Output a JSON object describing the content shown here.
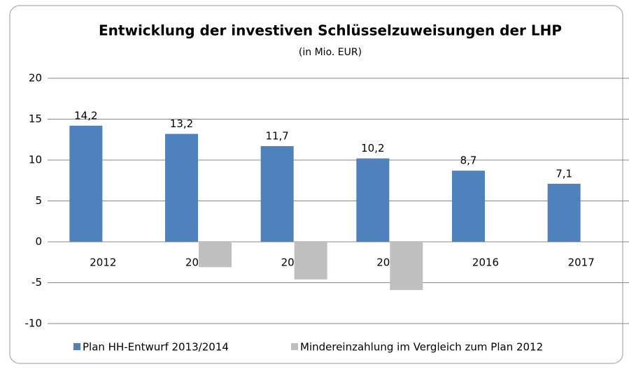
{
  "chart_data": {
    "type": "bar",
    "title": "Entwicklung der investiven Schlüsselzuweisungen  der LHP",
    "subtitle": "(in  Mio. EUR)",
    "categories": [
      "2012",
      "2013",
      "2014",
      "2015",
      "2016",
      "2017"
    ],
    "series": [
      {
        "name": "Plan HH-Entwurf 2013/2014",
        "color": "#4f81bd",
        "values": [
          14.2,
          13.2,
          11.7,
          10.2,
          8.7,
          7.1
        ],
        "value_labels": [
          "14,2",
          "13,2",
          "11,7",
          "10,2",
          "8,7",
          "7,1"
        ]
      },
      {
        "name": "Mindereinzahlung im Vergleich zum Plan 2012",
        "color": "#bfbfbf",
        "values": [
          null,
          -3.1,
          -4.6,
          -5.9,
          null,
          null
        ]
      }
    ],
    "ylim": [
      -10,
      20
    ],
    "yticks": [
      20,
      15,
      10,
      5,
      0,
      -5,
      -10
    ],
    "grid": true,
    "legend": "bottom"
  }
}
